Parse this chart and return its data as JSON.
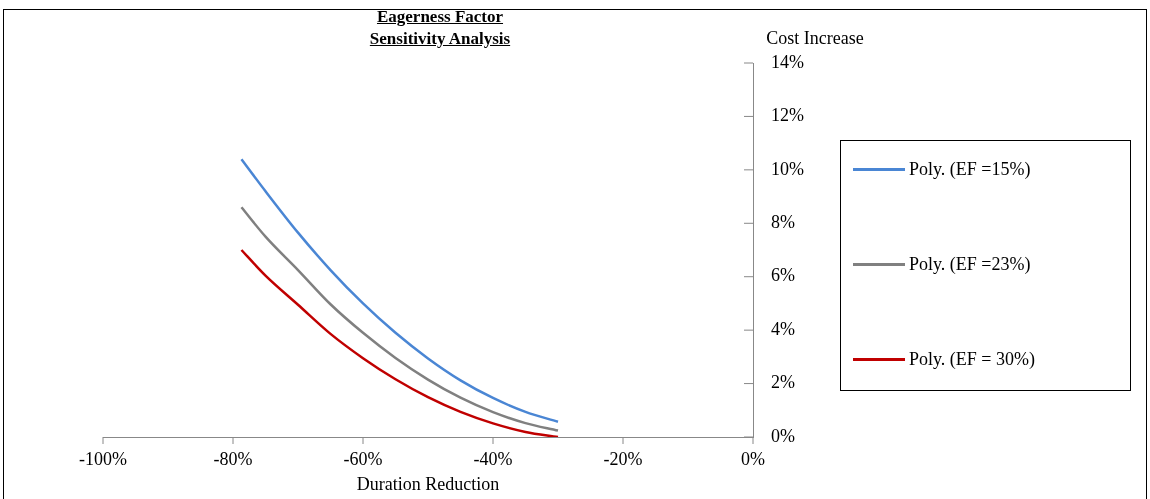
{
  "chart_data": {
    "type": "line",
    "title": "Eagerness Factor Sensitivity Analysis",
    "xlabel": "Duration Reduction",
    "ylabel": "Cost Increase",
    "xlim": [
      -100,
      0
    ],
    "xticks": [
      {
        "value": -100,
        "label": "-100%"
      },
      {
        "value": -80,
        "label": "-80%"
      },
      {
        "value": -60,
        "label": "-60%"
      },
      {
        "value": -40,
        "label": "-40%"
      },
      {
        "value": -20,
        "label": "-20%"
      },
      {
        "value": 0,
        "label": "0%"
      }
    ],
    "ylim": [
      0,
      14
    ],
    "yticks": [
      {
        "value": 0,
        "label": "0%"
      },
      {
        "value": 2,
        "label": "2%"
      },
      {
        "value": 4,
        "label": "4%"
      },
      {
        "value": 6,
        "label": "6%"
      },
      {
        "value": 8,
        "label": "8%"
      },
      {
        "value": 10,
        "label": "10%"
      },
      {
        "value": 12,
        "label": "12%"
      },
      {
        "value": 14,
        "label": "14%"
      }
    ],
    "x": [
      -78.7,
      -75,
      -70,
      -65,
      -60,
      -55,
      -50,
      -45,
      -40,
      -35,
      -30
    ],
    "series": [
      {
        "name": "Poly. (EF =15%)",
        "color": "#4a86d4",
        "values": [
          10.4,
          9.2,
          7.65,
          6.25,
          5.0,
          3.9,
          2.94,
          2.12,
          1.46,
          0.94,
          0.57
        ]
      },
      {
        "name": "Poly. (EF =23%)",
        "color": "#808080",
        "values": [
          8.6,
          7.5,
          6.25,
          4.97,
          3.9,
          2.96,
          2.15,
          1.47,
          0.93,
          0.52,
          0.24
        ]
      },
      {
        "name": "Poly. (EF = 30%)",
        "color": "#c00000",
        "values": [
          7.0,
          6.04,
          4.95,
          3.86,
          2.95,
          2.16,
          1.49,
          0.94,
          0.51,
          0.19,
          0.0
        ]
      }
    ],
    "grid": false,
    "legend": "right",
    "marker": "none",
    "line_style": "solid"
  }
}
